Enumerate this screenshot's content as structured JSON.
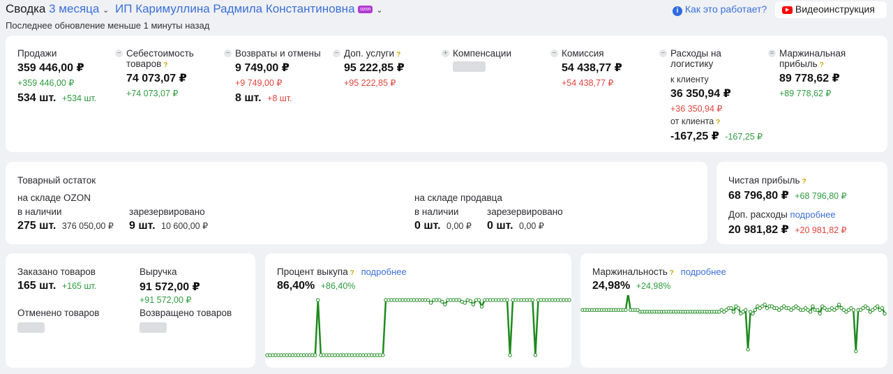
{
  "header": {
    "title": "Сводка",
    "period": "3 месяца",
    "company": "ИП Каримуллина Радмила Константиновна",
    "badge": "ozon",
    "help_link": "Как это работает?",
    "video_button": "Видеоинструкция",
    "updated": "Последнее обновление меньше 1 минуты назад",
    "accent_color": "#3a6fd8"
  },
  "summary": {
    "sales": {
      "label": "Продажи",
      "value": "359 446,00 ₽",
      "delta": "+359 446,00 ₽",
      "qty": "534 шт.",
      "qty_delta": "+534 шт."
    },
    "cost": {
      "label": "Себестоимость товаров",
      "hint": "?",
      "value": "74 073,07 ₽",
      "delta": "+74 073,07 ₽"
    },
    "returns": {
      "label": "Возвраты и отмены",
      "value": "9 749,00 ₽",
      "delta": "+9 749,00 ₽",
      "qty": "8 шт.",
      "qty_delta": "+8 шт."
    },
    "extra": {
      "label": "Доп. услуги",
      "hint": "?",
      "value": "95 222,85 ₽",
      "delta": "+95 222,85 ₽"
    },
    "compensation": {
      "label": "Компенсации"
    },
    "commission": {
      "label": "Комиссия",
      "value": "54 438,77 ₽",
      "delta": "+54 438,77 ₽"
    },
    "logistics": {
      "label": "Расходы на логистику",
      "to_label": "к клиенту",
      "to_value": "36 350,94 ₽",
      "to_delta": "+36 350,94 ₽",
      "from_label": "от клиента",
      "from_hint": "?",
      "from_value": "-167,25 ₽",
      "from_delta": "-167,25 ₽"
    },
    "margin": {
      "label": "Маржинальная прибыль",
      "hint": "?",
      "value": "89 778,62 ₽",
      "delta": "+89 778,62 ₽"
    },
    "ops": {
      "minus": "−",
      "plus": "+",
      "equals": "="
    }
  },
  "stock": {
    "title": "Товарный остаток",
    "ozon": {
      "label": "на складе OZON",
      "avail_label": "в наличии",
      "avail_qty": "275 шт.",
      "avail_sum": "376 050,00 ₽",
      "res_label": "зарезервировано",
      "res_qty": "9 шт.",
      "res_sum": "10 600,00 ₽"
    },
    "seller": {
      "label": "на складе продавца",
      "avail_label": "в наличии",
      "avail_qty": "0 шт.",
      "avail_sum": "0,00 ₽",
      "res_label": "зарезервировано",
      "res_qty": "0 шт.",
      "res_sum": "0,00 ₽"
    }
  },
  "profit": {
    "net_label": "Чистая прибыль",
    "net_hint": "?",
    "net_value": "68 796,80 ₽",
    "net_delta": "+68 796,80 ₽",
    "extra_label": "Доп. расходы",
    "extra_link": "подробнее",
    "extra_value": "20 981,82 ₽",
    "extra_delta": "+20 981,82 ₽"
  },
  "orders": {
    "ordered_label": "Заказано товаров",
    "ordered_value": "165 шт.",
    "ordered_delta": "+165 шт.",
    "revenue_label": "Выручка",
    "revenue_value": "91 572,00 ₽",
    "revenue_delta": "+91 572,00 ₽",
    "canceled_label": "Отменено товаров",
    "returned_label": "Возвращено товаров"
  },
  "buyout": {
    "label": "Процент выкупа",
    "hint": "?",
    "link": "подробнее",
    "value": "86,40%",
    "delta": "+86,40%",
    "line_color": "#1e8a1e"
  },
  "marginality": {
    "label": "Маржинальность",
    "hint": "?",
    "link": "подробнее",
    "value": "24,98%",
    "delta": "+24,98%",
    "line_color": "#1e8a1e"
  },
  "chart_data": [
    {
      "type": "line",
      "title": "Процент выкупа",
      "ylim": [
        0,
        100
      ],
      "values": [
        0,
        0,
        0,
        0,
        0,
        0,
        0,
        0,
        0,
        0,
        0,
        0,
        0,
        0,
        0,
        0,
        0,
        0,
        100,
        0,
        0,
        0,
        0,
        0,
        0,
        0,
        0,
        0,
        0,
        0,
        0,
        0,
        0,
        0,
        0,
        0,
        0,
        0,
        0,
        0,
        0,
        0,
        100,
        100,
        100,
        100,
        100,
        100,
        100,
        100,
        100,
        100,
        100,
        100,
        100,
        100,
        100,
        100,
        95,
        100,
        100,
        100,
        97,
        92,
        100,
        100,
        100,
        100,
        100,
        97,
        95,
        100,
        98,
        92,
        100,
        100,
        88,
        100,
        100,
        100,
        100,
        100,
        100,
        100,
        100,
        100,
        0,
        100,
        100,
        100,
        100,
        100,
        100,
        100,
        100,
        0,
        100,
        100,
        100,
        100,
        100,
        100,
        100,
        100,
        100,
        100,
        100,
        100
      ]
    },
    {
      "type": "line",
      "title": "Маржинальность",
      "ylim": [
        0,
        40
      ],
      "values": [
        24,
        24,
        24,
        24,
        24,
        24,
        24,
        24,
        24,
        24,
        24,
        24,
        24,
        24,
        24,
        24,
        24,
        24,
        24,
        33,
        24,
        24,
        24,
        24,
        23,
        23,
        23,
        23,
        23,
        23,
        23,
        23,
        23,
        23,
        23,
        23,
        23,
        23,
        23,
        23,
        23,
        23,
        23,
        23,
        23,
        23,
        23,
        23,
        23,
        23,
        23,
        23,
        23,
        23,
        23,
        23,
        23,
        23,
        24,
        23,
        24,
        25,
        25,
        23,
        26,
        25,
        22,
        23,
        24,
        2,
        23,
        22,
        24,
        26,
        25,
        26,
        27,
        25,
        26,
        26,
        25,
        25,
        24,
        25,
        26,
        25,
        25,
        24,
        25,
        26,
        25,
        24,
        24,
        25,
        24,
        23,
        26,
        24,
        24,
        22,
        26,
        25,
        24,
        24,
        25,
        24,
        25,
        27,
        25,
        24,
        23,
        24,
        25,
        24,
        1,
        24,
        24,
        25,
        26,
        25,
        23,
        24,
        25,
        26,
        24,
        25,
        22
      ]
    }
  ]
}
